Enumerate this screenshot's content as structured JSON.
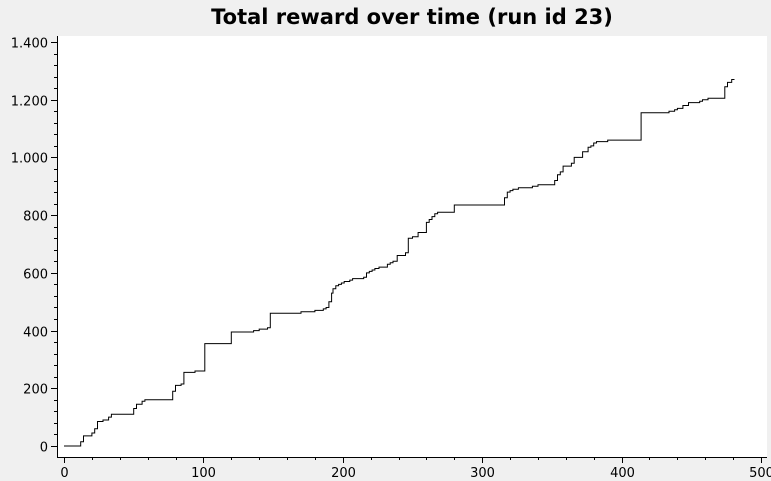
{
  "chart_data": {
    "type": "line",
    "title": "Total reward over time (run id 23)",
    "xlabel": "",
    "ylabel": "",
    "xlim": [
      0,
      500
    ],
    "ylim": [
      0,
      1400
    ],
    "x_ticks": [
      0,
      100,
      200,
      300,
      400,
      500
    ],
    "x_tick_labels": [
      "0",
      "100",
      "200",
      "300",
      "400",
      "500"
    ],
    "y_ticks": [
      0,
      200,
      400,
      600,
      800,
      1000,
      1200,
      1400
    ],
    "y_tick_labels": [
      "0",
      "200",
      "400",
      "600",
      "800",
      "1.000",
      "1.200",
      "1.400"
    ],
    "grid": false,
    "legend": "none",
    "colors": {
      "background": "#f0f0f0",
      "plot_area": "#ffffff",
      "line": "#000000",
      "axis": "#000000"
    },
    "series": [
      {
        "step": true,
        "x": [
          0,
          10,
          12,
          14,
          20,
          22,
          24,
          28,
          32,
          34,
          48,
          50,
          52,
          56,
          58,
          76,
          78,
          80,
          84,
          86,
          92,
          94,
          99,
          101,
          118,
          120,
          134,
          136,
          140,
          146,
          148,
          152,
          170,
          180,
          186,
          188,
          190,
          192,
          193,
          195,
          197,
          199,
          201,
          205,
          207,
          213,
          215,
          217,
          219,
          221,
          222,
          223,
          224,
          226,
          232,
          234,
          236,
          239,
          245,
          247,
          250,
          252,
          254,
          260,
          262,
          264,
          266,
          268,
          280,
          282,
          300,
          312,
          316,
          318,
          320,
          322,
          326,
          328,
          330,
          336,
          340,
          350,
          352,
          354,
          356,
          358,
          364,
          366,
          372,
          376,
          378,
          380,
          382,
          390,
          412,
          414,
          434,
          438,
          440,
          444,
          448,
          450,
          456,
          458,
          462,
          472,
          474,
          476,
          479,
          481
        ],
        "y": [
          0,
          0,
          15,
          35,
          45,
          60,
          85,
          90,
          100,
          110,
          110,
          130,
          145,
          155,
          160,
          160,
          190,
          210,
          215,
          255,
          255,
          260,
          260,
          355,
          355,
          395,
          395,
          400,
          405,
          410,
          460,
          460,
          465,
          470,
          475,
          480,
          500,
          530,
          545,
          555,
          560,
          565,
          570,
          575,
          580,
          580,
          585,
          600,
          605,
          610,
          610,
          615,
          615,
          620,
          630,
          635,
          640,
          660,
          670,
          720,
          725,
          725,
          740,
          775,
          785,
          795,
          805,
          810,
          835,
          835,
          835,
          835,
          860,
          880,
          885,
          890,
          895,
          895,
          895,
          900,
          905,
          905,
          920,
          940,
          950,
          970,
          980,
          1000,
          1020,
          1035,
          1040,
          1050,
          1055,
          1060,
          1060,
          1155,
          1160,
          1165,
          1170,
          1180,
          1190,
          1190,
          1195,
          1200,
          1205,
          1205,
          1245,
          1260,
          1270,
          1270
        ]
      }
    ]
  }
}
